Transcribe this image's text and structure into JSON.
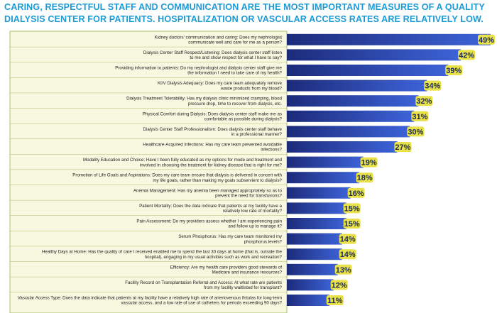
{
  "chart_data": {
    "type": "bar",
    "orientation": "horizontal",
    "title": "CARING, RESPECTFUL STAFF AND COMMUNICATION ARE THE MOST IMPORTANT MEASURES OF A QUALITY DIALYSIS CENTER FOR PATIENTS. HOSPITALIZATION OR VASCULAR ACCESS RATES ARE RELATIVELY LOW.",
    "xlim": [
      0,
      49
    ],
    "grid": false,
    "colors": {
      "bar_dark": "#1c2b7a",
      "bar_light": "#3d63d8",
      "label_panel": "#f8f8e1",
      "label_panel_border": "#a9c06a",
      "value_badge": "#e8e14a",
      "title": "#1d9bd6"
    },
    "categories": [
      [
        "Kidney doctors' communication and caring: Does my nephrologist",
        "communicate well and care for me as a person?"
      ],
      [
        "Dialysis Center Staff Respect/Listening: Does dialysis center staff listen",
        "to me and show respect for what I have to say?"
      ],
      [
        "Providing information to patients: Do my nephrologist and dialysis center staff give me",
        "the information I need to take care of my health?"
      ],
      [
        "Kt/V Dialysis Adequacy: Does my care team adequately remove",
        "waste products from my blood?"
      ],
      [
        "Dialysis Treatment Tolerability: Has my dialysis clinic minimized cramping, blood",
        "pressure drop, time to recover from dialysis, etc."
      ],
      [
        "Physical Comfort during Dialysis: Does dialysis center staff make me as",
        "comfortable as possible during dialysis?"
      ],
      [
        "Dialysis Center Staff Professionalism: Does dialysis center staff behave",
        "in a professional manner?"
      ],
      [
        "Healthcare-Acquired Infections: Has my care team prevented avoidable",
        "infections?"
      ],
      [
        "Modality Education and Choice: Have I been fully educated as my options for mode and treatment and",
        "involved in choosing the treatment for kidney disease that is right for me?"
      ],
      [
        "Promotion of Life Goals and Aspirations: Does my care team ensure that dialysis is delivered in concert with",
        "my life goals, rather than making my goals subservient to dialysis?"
      ],
      [
        "Anemia Management: Has my anemia been managed appropriately so as to",
        "prevent the need for transfusions?"
      ],
      [
        "Patient Mortality: Does the data indicate that patients at my facility have a",
        "relatively low rate of mortality?"
      ],
      [
        "Pain Assessment: Do my providers assess whether I am experiencing pain",
        "and follow up to manage it?"
      ],
      [
        "Serum Phosphorus: Has my care team monitored my",
        "phosphorus levels?"
      ],
      [
        "Healthy Days at Home: Has the quality of care I received enabled me to spend the last 30 days at home (that is, outside the",
        "hospital), engaging in my usual activities such as work and recreation?"
      ],
      [
        "Efficiency: Are my health care providers good stewards of",
        "Medicare and insurance resources?"
      ],
      [
        "Facility Record on Transplantation Referral and Access: At what rate are patients",
        "from my facility waitlisted for transplant?"
      ],
      [
        "Vascular Access Type: Does the data indicate that patients at my facility have a relatively high rate of arteriovenous fistulas for long-term",
        "vascular access, and a low rate of use of catheters for periods exceeding 90 days?"
      ]
    ],
    "values": [
      49,
      42,
      39,
      34,
      32,
      31,
      30,
      27,
      19,
      18,
      16,
      15,
      15,
      14,
      14,
      13,
      12,
      11
    ],
    "value_labels": [
      "49%",
      "42%",
      "39%",
      "34%",
      "32%",
      "31%",
      "30%",
      "27%",
      "19%",
      "18%",
      "16%",
      "15%",
      "15%",
      "14%",
      "14%",
      "13%",
      "12%",
      "11%"
    ]
  }
}
